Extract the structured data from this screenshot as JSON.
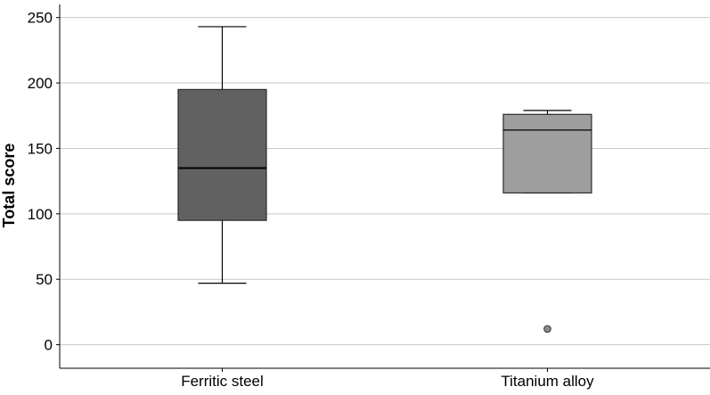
{
  "chart_data": {
    "type": "boxplot",
    "title": "",
    "xlabel": "",
    "ylabel": "Total score",
    "ylim": [
      -18,
      260
    ],
    "yticks": [
      0,
      50,
      100,
      150,
      200,
      250
    ],
    "grid": "horizontal",
    "legend": "none",
    "categories": [
      "Ferritic steel",
      "Titanium alloy"
    ],
    "boxes": [
      {
        "category": "Ferritic steel",
        "whisker_low": 47,
        "q1": 95,
        "median": 135,
        "q3": 195,
        "whisker_high": 243,
        "outliers": [],
        "color": "#616161"
      },
      {
        "category": "Titanium alloy",
        "whisker_low": 116,
        "q1": 116,
        "median": 164,
        "q3": 176,
        "whisker_high": 179,
        "outliers": [
          12
        ],
        "color": "#9e9e9e"
      }
    ]
  }
}
